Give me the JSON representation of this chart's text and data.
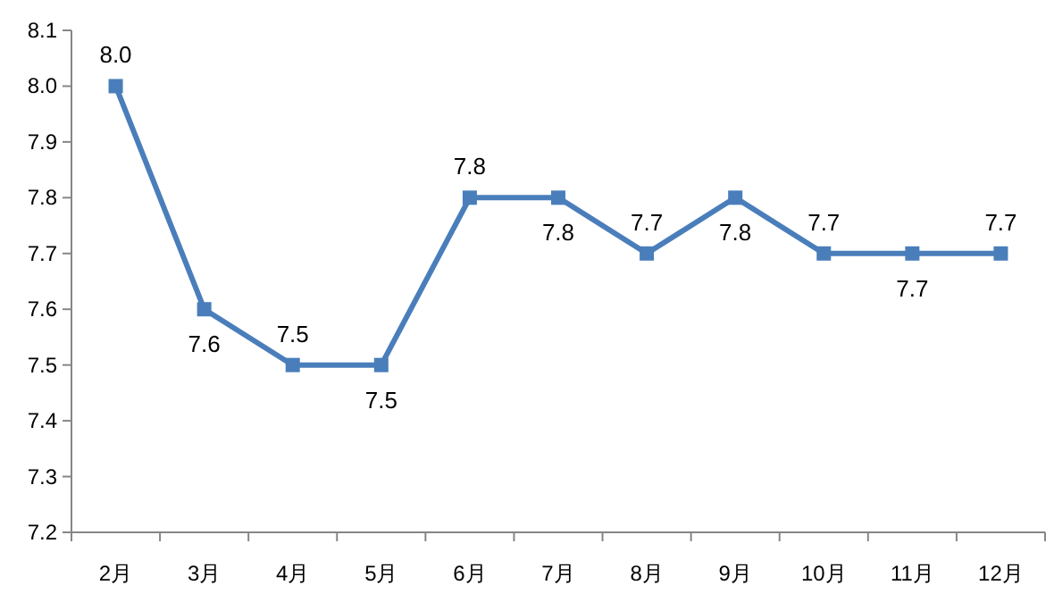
{
  "chart_data": {
    "type": "line",
    "categories": [
      "2月",
      "3月",
      "4月",
      "5月",
      "6月",
      "7月",
      "8月",
      "9月",
      "10月",
      "11月",
      "12月"
    ],
    "series": [
      {
        "color": "#4a7ebb",
        "values": [
          8.0,
          7.6,
          7.5,
          7.5,
          7.8,
          7.8,
          7.7,
          7.8,
          7.7,
          7.7,
          7.7
        ],
        "value_labels": [
          "8.0",
          "7.6",
          "7.5",
          "7.5",
          "7.8",
          "7.8",
          "7.7",
          "7.8",
          "7.7",
          "7.7",
          "7.7"
        ]
      }
    ],
    "ylim": [
      7.2,
      8.1
    ],
    "yticks": [
      7.2,
      7.3,
      7.4,
      7.5,
      7.6,
      7.7,
      7.8,
      7.9,
      {
        "value": 8,
        "label": "8.0"
      },
      8.1
    ],
    "grid": false,
    "marker": "square",
    "line_style": "solid"
  }
}
